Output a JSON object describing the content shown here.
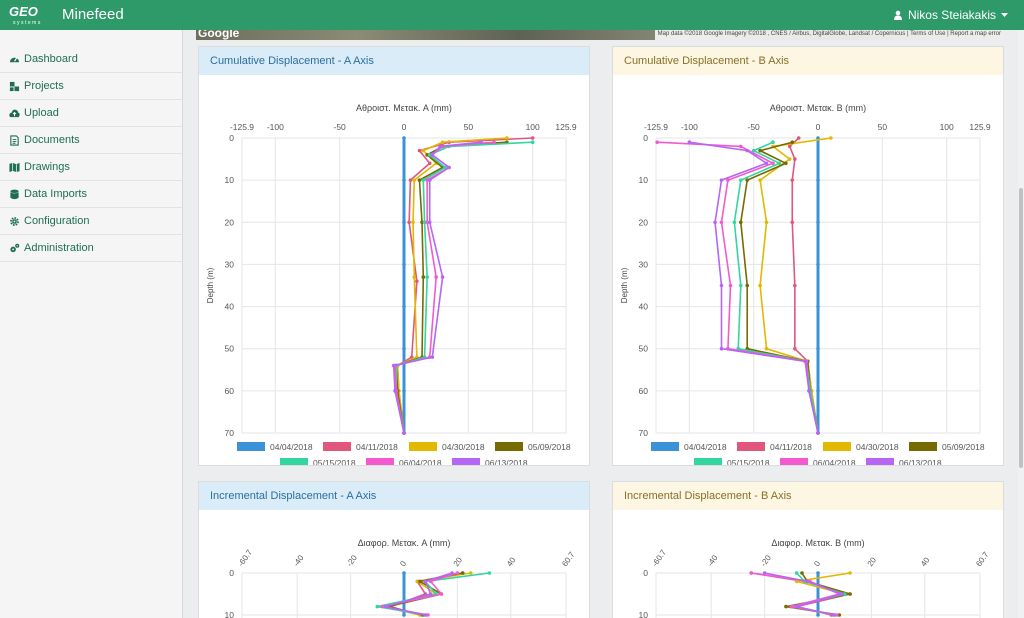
{
  "app": {
    "name": "Minefeed",
    "logo_text": "GEO systems"
  },
  "user": {
    "name": "Nikos Steiakakis"
  },
  "icons": {
    "user": "user-icon",
    "caret": "caret-down-icon"
  },
  "sidebar": {
    "items": [
      {
        "label": "Dashboard",
        "icon": "dashboard-icon"
      },
      {
        "label": "Projects",
        "icon": "projects-icon"
      },
      {
        "label": "Upload",
        "icon": "upload-icon"
      },
      {
        "label": "Documents",
        "icon": "document-icon"
      },
      {
        "label": "Drawings",
        "icon": "map-icon"
      },
      {
        "label": "Data Imports",
        "icon": "database-icon"
      },
      {
        "label": "Configuration",
        "icon": "gear-icon"
      },
      {
        "label": "Administration",
        "icon": "gears-icon"
      }
    ]
  },
  "map": {
    "google": "Google",
    "credits": "Map data ©2018 Google Imagery ©2018 , CNES / Airbus, DigitalGlobe, Landsat / Copernicus  |  Terms of Use  |  Report a map error"
  },
  "colors": {
    "04/04/2018": "#3a93d8",
    "04/11/2018": "#e0567d",
    "04/30/2018": "#e3b800",
    "05/09/2018": "#776a00",
    "05/15/2018": "#31d6a0",
    "06/04/2018": "#f25bcf",
    "06/13/2018": "#b566f4"
  },
  "panels": {
    "cumA": {
      "title": "Cumulative Displacement - A Axis"
    },
    "cumB": {
      "title": "Cumulative Displacement - B Axis"
    },
    "incA": {
      "title": "Incremental Displacement - A Axis"
    },
    "incB": {
      "title": "Incremental Displacement - B Axis"
    }
  },
  "chart_data": [
    {
      "type": "line",
      "title": "Αθροιστ. Μετακ. A (mm)",
      "ylabel": "Depth (m)",
      "xlim": [
        -125.9,
        125.9
      ],
      "xticks": [
        "-125.9",
        "-100",
        "-50",
        "0",
        "50",
        "100",
        "125.9"
      ],
      "ylim": [
        0,
        70
      ],
      "yticks": [
        "0",
        "10",
        "20",
        "30",
        "40",
        "50",
        "60",
        "70"
      ],
      "legend": "bottom",
      "series": [
        {
          "name": "04/04/2018",
          "points": [
            [
              0,
              0
            ],
            [
              0,
              10
            ],
            [
              0,
              20
            ],
            [
              0,
              30
            ],
            [
              0,
              40
            ],
            [
              0,
              50
            ],
            [
              0,
              60
            ],
            [
              0,
              70
            ]
          ]
        },
        {
          "name": "04/11/2018",
          "points": [
            [
              100,
              0
            ],
            [
              35,
              1
            ],
            [
              12,
              3
            ],
            [
              20,
              6
            ],
            [
              5,
              10
            ],
            [
              4,
              20
            ],
            [
              10,
              34
            ],
            [
              6,
              52
            ],
            [
              -5,
              54
            ],
            [
              -4,
              60
            ],
            [
              0,
              70
            ]
          ]
        },
        {
          "name": "04/30/2018",
          "points": [
            [
              80,
              0
            ],
            [
              30,
              1
            ],
            [
              15,
              3
            ],
            [
              25,
              6
            ],
            [
              8,
              10
            ],
            [
              7,
              20
            ],
            [
              8,
              33
            ],
            [
              10,
              52
            ],
            [
              -5,
              54
            ],
            [
              -4,
              60
            ],
            [
              0,
              70
            ]
          ]
        },
        {
          "name": "05/09/2018",
          "points": [
            [
              80,
              1
            ],
            [
              30,
              2
            ],
            [
              18,
              4
            ],
            [
              30,
              7
            ],
            [
              12,
              10
            ],
            [
              14,
              20
            ],
            [
              15,
              33
            ],
            [
              14,
              52
            ],
            [
              -6,
              54
            ],
            [
              -5,
              60
            ],
            [
              0,
              70
            ]
          ]
        },
        {
          "name": "05/15/2018",
          "points": [
            [
              100,
              1
            ],
            [
              35,
              2
            ],
            [
              20,
              4
            ],
            [
              32,
              7
            ],
            [
              15,
              10
            ],
            [
              16,
              20
            ],
            [
              18,
              33
            ],
            [
              16,
              52
            ],
            [
              -6,
              54
            ],
            [
              -6,
              60
            ],
            [
              0,
              70
            ]
          ]
        },
        {
          "name": "06/04/2018",
          "points": [
            [
              70,
              1
            ],
            [
              30,
              2
            ],
            [
              22,
              4
            ],
            [
              35,
              7
            ],
            [
              18,
              10
            ],
            [
              18,
              20
            ],
            [
              25,
              33
            ],
            [
              20,
              52
            ],
            [
              -7,
              54
            ],
            [
              -6,
              60
            ],
            [
              0,
              70
            ]
          ]
        },
        {
          "name": "06/13/2018",
          "points": [
            [
              60,
              1
            ],
            [
              28,
              2
            ],
            [
              22,
              4
            ],
            [
              35,
              7
            ],
            [
              20,
              10
            ],
            [
              20,
              20
            ],
            [
              30,
              33
            ],
            [
              22,
              52
            ],
            [
              -8,
              54
            ],
            [
              -7,
              60
            ],
            [
              0,
              70
            ]
          ]
        }
      ]
    },
    {
      "type": "line",
      "title": "Αθροιστ. Μετακ. B (mm)",
      "ylabel": "Depth (m)",
      "xlim": [
        -125.9,
        125.9
      ],
      "xticks": [
        "-125.9",
        "-100",
        "-50",
        "0",
        "50",
        "100",
        "125.9"
      ],
      "ylim": [
        0,
        70
      ],
      "yticks": [
        "0",
        "10",
        "20",
        "30",
        "40",
        "50",
        "60",
        "70"
      ],
      "legend": "bottom",
      "series": [
        {
          "name": "04/04/2018",
          "points": [
            [
              0,
              0
            ],
            [
              0,
              10
            ],
            [
              0,
              20
            ],
            [
              0,
              30
            ],
            [
              0,
              40
            ],
            [
              0,
              50
            ],
            [
              0,
              60
            ],
            [
              0,
              70
            ]
          ]
        },
        {
          "name": "04/11/2018",
          "points": [
            [
              -15,
              0
            ],
            [
              -22,
              2
            ],
            [
              -18,
              5
            ],
            [
              -20,
              10
            ],
            [
              -20,
              20
            ],
            [
              -18,
              35
            ],
            [
              -18,
              50
            ],
            [
              -8,
              53
            ],
            [
              -5,
              60
            ],
            [
              0,
              70
            ]
          ]
        },
        {
          "name": "04/30/2018",
          "points": [
            [
              10,
              0
            ],
            [
              -35,
              2
            ],
            [
              -22,
              5
            ],
            [
              -45,
              10
            ],
            [
              -40,
              20
            ],
            [
              -45,
              35
            ],
            [
              -40,
              50
            ],
            [
              -8,
              53
            ],
            [
              -5,
              60
            ],
            [
              0,
              70
            ]
          ]
        },
        {
          "name": "05/09/2018",
          "points": [
            [
              -20,
              1
            ],
            [
              -45,
              3
            ],
            [
              -25,
              6
            ],
            [
              -55,
              10
            ],
            [
              -60,
              20
            ],
            [
              -55,
              35
            ],
            [
              -55,
              50
            ],
            [
              -8,
              53
            ],
            [
              -6,
              60
            ],
            [
              0,
              70
            ]
          ]
        },
        {
          "name": "05/15/2018",
          "points": [
            [
              -35,
              1
            ],
            [
              -50,
              3
            ],
            [
              -30,
              6
            ],
            [
              -60,
              10
            ],
            [
              -65,
              20
            ],
            [
              -60,
              35
            ],
            [
              -62,
              50
            ],
            [
              -9,
              53
            ],
            [
              -6,
              60
            ],
            [
              0,
              70
            ]
          ]
        },
        {
          "name": "06/04/2018",
          "points": [
            [
              -125,
              1
            ],
            [
              -60,
              2
            ],
            [
              -35,
              6
            ],
            [
              -70,
              10
            ],
            [
              -75,
              20
            ],
            [
              -68,
              35
            ],
            [
              -70,
              50
            ],
            [
              -9,
              53
            ],
            [
              -7,
              60
            ],
            [
              0,
              70
            ]
          ]
        },
        {
          "name": "06/13/2018",
          "points": [
            [
              -100,
              1
            ],
            [
              -55,
              3
            ],
            [
              -40,
              6
            ],
            [
              -75,
              10
            ],
            [
              -80,
              20
            ],
            [
              -75,
              35
            ],
            [
              -75,
              50
            ],
            [
              -10,
              53
            ],
            [
              -7,
              60
            ],
            [
              0,
              70
            ]
          ]
        }
      ]
    },
    {
      "type": "line",
      "title": "Διαφορ. Μετακ. A (mm)",
      "xlim": [
        -60.7,
        60.7
      ],
      "xticks": [
        "-60.7",
        "-40",
        "-20",
        "0",
        "20",
        "40",
        "60.7"
      ],
      "ylim": [
        0,
        10
      ],
      "yticks": [
        "0",
        "10"
      ],
      "series": [
        {
          "name": "04/04/2018",
          "points": [
            [
              0,
              0
            ],
            [
              0,
              10
            ]
          ]
        },
        {
          "name": "04/11/2018",
          "points": [
            [
              22,
              0
            ],
            [
              5,
              2
            ],
            [
              8,
              5
            ],
            [
              -5,
              8
            ],
            [
              6,
              10
            ]
          ]
        },
        {
          "name": "04/30/2018",
          "points": [
            [
              25,
              0
            ],
            [
              5,
              2
            ],
            [
              12,
              5
            ],
            [
              -8,
              8
            ],
            [
              6,
              10
            ]
          ]
        },
        {
          "name": "05/09/2018",
          "points": [
            [
              22,
              0
            ],
            [
              6,
              2
            ],
            [
              14,
              5
            ],
            [
              -6,
              8
            ],
            [
              7,
              10
            ]
          ]
        },
        {
          "name": "05/15/2018",
          "points": [
            [
              32,
              0
            ],
            [
              8,
              2
            ],
            [
              12,
              5
            ],
            [
              -10,
              8
            ],
            [
              8,
              10
            ]
          ]
        },
        {
          "name": "06/04/2018",
          "points": [
            [
              20,
              0
            ],
            [
              10,
              2
            ],
            [
              14,
              5
            ],
            [
              -8,
              8
            ],
            [
              9,
              10
            ]
          ]
        },
        {
          "name": "06/13/2018",
          "points": [
            [
              18,
              0
            ],
            [
              8,
              2
            ],
            [
              10,
              5
            ],
            [
              -7,
              8
            ],
            [
              8,
              10
            ]
          ]
        }
      ]
    },
    {
      "type": "line",
      "title": "Διαφορ. Μετακ. B (mm)",
      "xlim": [
        -60.7,
        60.7
      ],
      "xticks": [
        "-60.7",
        "-40",
        "-20",
        "0",
        "20",
        "40",
        "60.7"
      ],
      "ylim": [
        0,
        10
      ],
      "yticks": [
        "0",
        "10"
      ],
      "series": [
        {
          "name": "04/04/2018",
          "points": [
            [
              0,
              0
            ],
            [
              0,
              10
            ]
          ]
        },
        {
          "name": "04/11/2018",
          "points": [
            [
              -25,
              0
            ],
            [
              -5,
              2
            ],
            [
              12,
              5
            ],
            [
              -8,
              8
            ],
            [
              5,
              10
            ]
          ]
        },
        {
          "name": "04/30/2018",
          "points": [
            [
              12,
              0
            ],
            [
              -8,
              2
            ],
            [
              10,
              5
            ],
            [
              -10,
              8
            ],
            [
              6,
              10
            ]
          ]
        },
        {
          "name": "05/09/2018",
          "points": [
            [
              -6,
              0
            ],
            [
              -4,
              2
            ],
            [
              12,
              5
            ],
            [
              -12,
              8
            ],
            [
              8,
              10
            ]
          ]
        },
        {
          "name": "05/15/2018",
          "points": [
            [
              -8,
              0
            ],
            [
              -5,
              2
            ],
            [
              10,
              5
            ],
            [
              -9,
              8
            ],
            [
              6,
              10
            ]
          ]
        },
        {
          "name": "06/04/2018",
          "points": [
            [
              -25,
              0
            ],
            [
              -3,
              2
            ],
            [
              8,
              5
            ],
            [
              -10,
              8
            ],
            [
              7,
              10
            ]
          ]
        },
        {
          "name": "06/13/2018",
          "points": [
            [
              -20,
              0
            ],
            [
              -4,
              2
            ],
            [
              9,
              5
            ],
            [
              -8,
              8
            ],
            [
              6,
              10
            ]
          ]
        }
      ]
    }
  ]
}
